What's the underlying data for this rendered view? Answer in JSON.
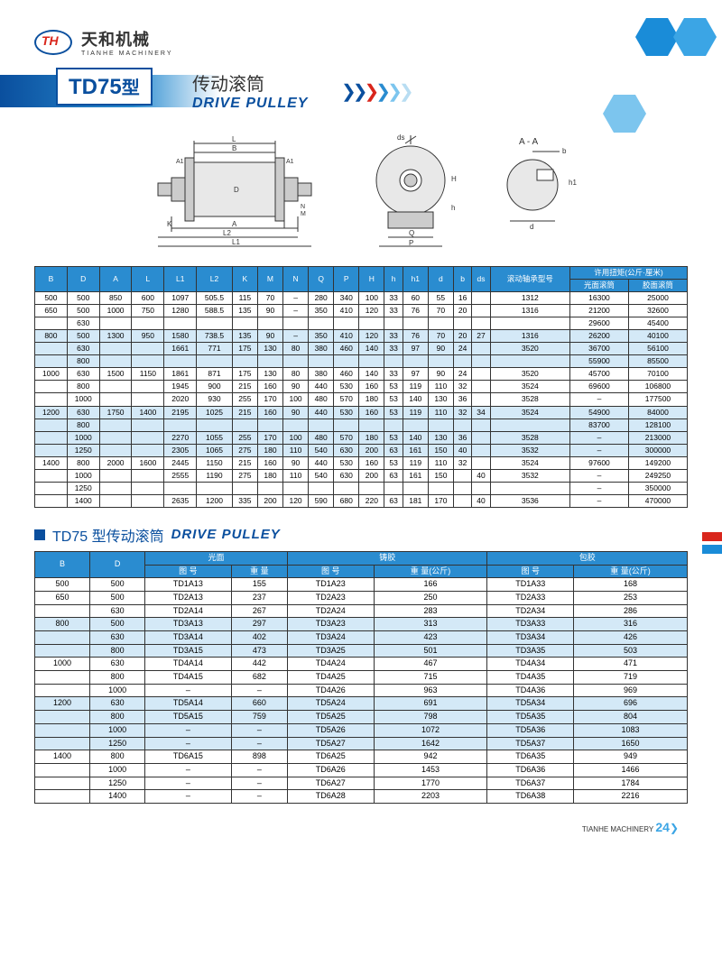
{
  "brand": {
    "cn": "天和机械",
    "en": "TIANHE MACHINERY",
    "logo_text": "TH"
  },
  "title": {
    "model": "TD75",
    "xing": "型",
    "cn": "传动滚筒",
    "en": "DRIVE PULLEY"
  },
  "t1": {
    "headers": [
      "B",
      "D",
      "A",
      "L",
      "L1",
      "L2",
      "K",
      "M",
      "N",
      "Q",
      "P",
      "H",
      "h",
      "h1",
      "d",
      "b",
      "ds",
      "滚动轴承型号",
      "许用扭矩(公斤·厘米)"
    ],
    "sub_headers": [
      "光面滚筒",
      "胶面滚筒"
    ],
    "rows": [
      [
        "500",
        "500",
        "850",
        "600",
        "1097",
        "505.5",
        "115",
        "70",
        "–",
        "280",
        "340",
        "100",
        "33",
        "60",
        "55",
        "16",
        "",
        "1312",
        "16300",
        "25000"
      ],
      [
        "650",
        "500",
        "1000",
        "750",
        "1280",
        "588.5",
        "135",
        "90",
        "–",
        "350",
        "410",
        "120",
        "33",
        "76",
        "70",
        "20",
        "",
        "1316",
        "21200",
        "32600"
      ],
      [
        "",
        "630",
        "",
        "",
        "",
        "",
        "",
        "",
        "",
        "",
        "",
        "",
        "",
        "",
        "",
        "",
        "",
        "",
        "29600",
        "45400"
      ],
      [
        "800",
        "500",
        "1300",
        "950",
        "1580",
        "738.5",
        "135",
        "90",
        "–",
        "350",
        "410",
        "120",
        "33",
        "76",
        "70",
        "20",
        "27",
        "1316",
        "26200",
        "40100"
      ],
      [
        "",
        "630",
        "",
        "",
        "1661",
        "771",
        "175",
        "130",
        "80",
        "380",
        "460",
        "140",
        "33",
        "97",
        "90",
        "24",
        "",
        "3520",
        "36700",
        "56100"
      ],
      [
        "",
        "800",
        "",
        "",
        "",
        "",
        "",
        "",
        "",
        "",
        "",
        "",
        "",
        "",
        "",
        "",
        "",
        "",
        "55900",
        "85500"
      ],
      [
        "1000",
        "630",
        "1500",
        "1150",
        "1861",
        "871",
        "175",
        "130",
        "80",
        "380",
        "460",
        "140",
        "33",
        "97",
        "90",
        "24",
        "",
        "3520",
        "45700",
        "70100"
      ],
      [
        "",
        "800",
        "",
        "",
        "1945",
        "900",
        "215",
        "160",
        "90",
        "440",
        "530",
        "160",
        "53",
        "119",
        "110",
        "32",
        "",
        "3524",
        "69600",
        "106800"
      ],
      [
        "",
        "1000",
        "",
        "",
        "2020",
        "930",
        "255",
        "170",
        "100",
        "480",
        "570",
        "180",
        "53",
        "140",
        "130",
        "36",
        "",
        "3528",
        "–",
        "177500"
      ],
      [
        "1200",
        "630",
        "1750",
        "1400",
        "2195",
        "1025",
        "215",
        "160",
        "90",
        "440",
        "530",
        "160",
        "53",
        "119",
        "110",
        "32",
        "34",
        "3524",
        "54900",
        "84000"
      ],
      [
        "",
        "800",
        "",
        "",
        "",
        "",
        "",
        "",
        "",
        "",
        "",
        "",
        "",
        "",
        "",
        "",
        "",
        "",
        "83700",
        "128100"
      ],
      [
        "",
        "1000",
        "",
        "",
        "2270",
        "1055",
        "255",
        "170",
        "100",
        "480",
        "570",
        "180",
        "53",
        "140",
        "130",
        "36",
        "",
        "3528",
        "–",
        "213000"
      ],
      [
        "",
        "1250",
        "",
        "",
        "2305",
        "1065",
        "275",
        "180",
        "110",
        "540",
        "630",
        "200",
        "63",
        "161",
        "150",
        "40",
        "",
        "3532",
        "–",
        "300000"
      ],
      [
        "1400",
        "800",
        "2000",
        "1600",
        "2445",
        "1150",
        "215",
        "160",
        "90",
        "440",
        "530",
        "160",
        "53",
        "119",
        "110",
        "32",
        "",
        "3524",
        "97600",
        "149200"
      ],
      [
        "",
        "1000",
        "",
        "",
        "2555",
        "1190",
        "275",
        "180",
        "110",
        "540",
        "630",
        "200",
        "63",
        "161",
        "150",
        "",
        "40",
        "3532",
        "–",
        "249250"
      ],
      [
        "",
        "1250",
        "",
        "",
        "",
        "",
        "",
        "",
        "",
        "",
        "",
        "",
        "",
        "",
        "",
        "",
        "",
        "",
        "–",
        "350000"
      ],
      [
        "",
        "1400",
        "",
        "",
        "2635",
        "1200",
        "335",
        "200",
        "120",
        "590",
        "680",
        "220",
        "63",
        "181",
        "170",
        "",
        "40",
        "3536",
        "–",
        "470000"
      ]
    ],
    "stripes": [
      3,
      4,
      5,
      9,
      10,
      11,
      12
    ]
  },
  "sub": {
    "cn": "TD75 型传动滚筒",
    "en": "DRIVE PULLEY"
  },
  "t2": {
    "group_headers": [
      "光面",
      "铸胶",
      "包胶"
    ],
    "col_headers": [
      "B",
      "D",
      "图 号",
      "重 量",
      "图 号",
      "重 量(公斤)",
      "图 号",
      "重 量(公斤)"
    ],
    "rows": [
      [
        "500",
        "500",
        "TD1A13",
        "155",
        "TD1A23",
        "166",
        "TD1A33",
        "168"
      ],
      [
        "650",
        "500",
        "TD2A13",
        "237",
        "TD2A23",
        "250",
        "TD2A33",
        "253"
      ],
      [
        "",
        "630",
        "TD2A14",
        "267",
        "TD2A24",
        "283",
        "TD2A34",
        "286"
      ],
      [
        "800",
        "500",
        "TD3A13",
        "297",
        "TD3A23",
        "313",
        "TD3A33",
        "316"
      ],
      [
        "",
        "630",
        "TD3A14",
        "402",
        "TD3A24",
        "423",
        "TD3A34",
        "426"
      ],
      [
        "",
        "800",
        "TD3A15",
        "473",
        "TD3A25",
        "501",
        "TD3A35",
        "503"
      ],
      [
        "1000",
        "630",
        "TD4A14",
        "442",
        "TD4A24",
        "467",
        "TD4A34",
        "471"
      ],
      [
        "",
        "800",
        "TD4A15",
        "682",
        "TD4A25",
        "715",
        "TD4A35",
        "719"
      ],
      [
        "",
        "1000",
        "–",
        "–",
        "TD4A26",
        "963",
        "TD4A36",
        "969"
      ],
      [
        "1200",
        "630",
        "TD5A14",
        "660",
        "TD5A24",
        "691",
        "TD5A34",
        "696"
      ],
      [
        "",
        "800",
        "TD5A15",
        "759",
        "TD5A25",
        "798",
        "TD5A35",
        "804"
      ],
      [
        "",
        "1000",
        "–",
        "–",
        "TD5A26",
        "1072",
        "TD5A36",
        "1083"
      ],
      [
        "",
        "1250",
        "–",
        "–",
        "TD5A27",
        "1642",
        "TD5A37",
        "1650"
      ],
      [
        "1400",
        "800",
        "TD6A15",
        "898",
        "TD6A25",
        "942",
        "TD6A35",
        "949"
      ],
      [
        "",
        "1000",
        "–",
        "–",
        "TD6A26",
        "1453",
        "TD6A36",
        "1466"
      ],
      [
        "",
        "1250",
        "–",
        "–",
        "TD6A27",
        "1770",
        "TD6A37",
        "1784"
      ],
      [
        "",
        "1400",
        "–",
        "–",
        "TD6A28",
        "2203",
        "TD6A38",
        "2216"
      ]
    ],
    "stripes": [
      3,
      4,
      5,
      9,
      10,
      11,
      12
    ]
  },
  "footer": {
    "brand": "TIANHE MACHINERY",
    "page": "24"
  },
  "colors": {
    "primary": "#0a4f9e",
    "accent": "#2a8cd0",
    "red": "#d9261c",
    "stripe": "#d4e9f7"
  }
}
